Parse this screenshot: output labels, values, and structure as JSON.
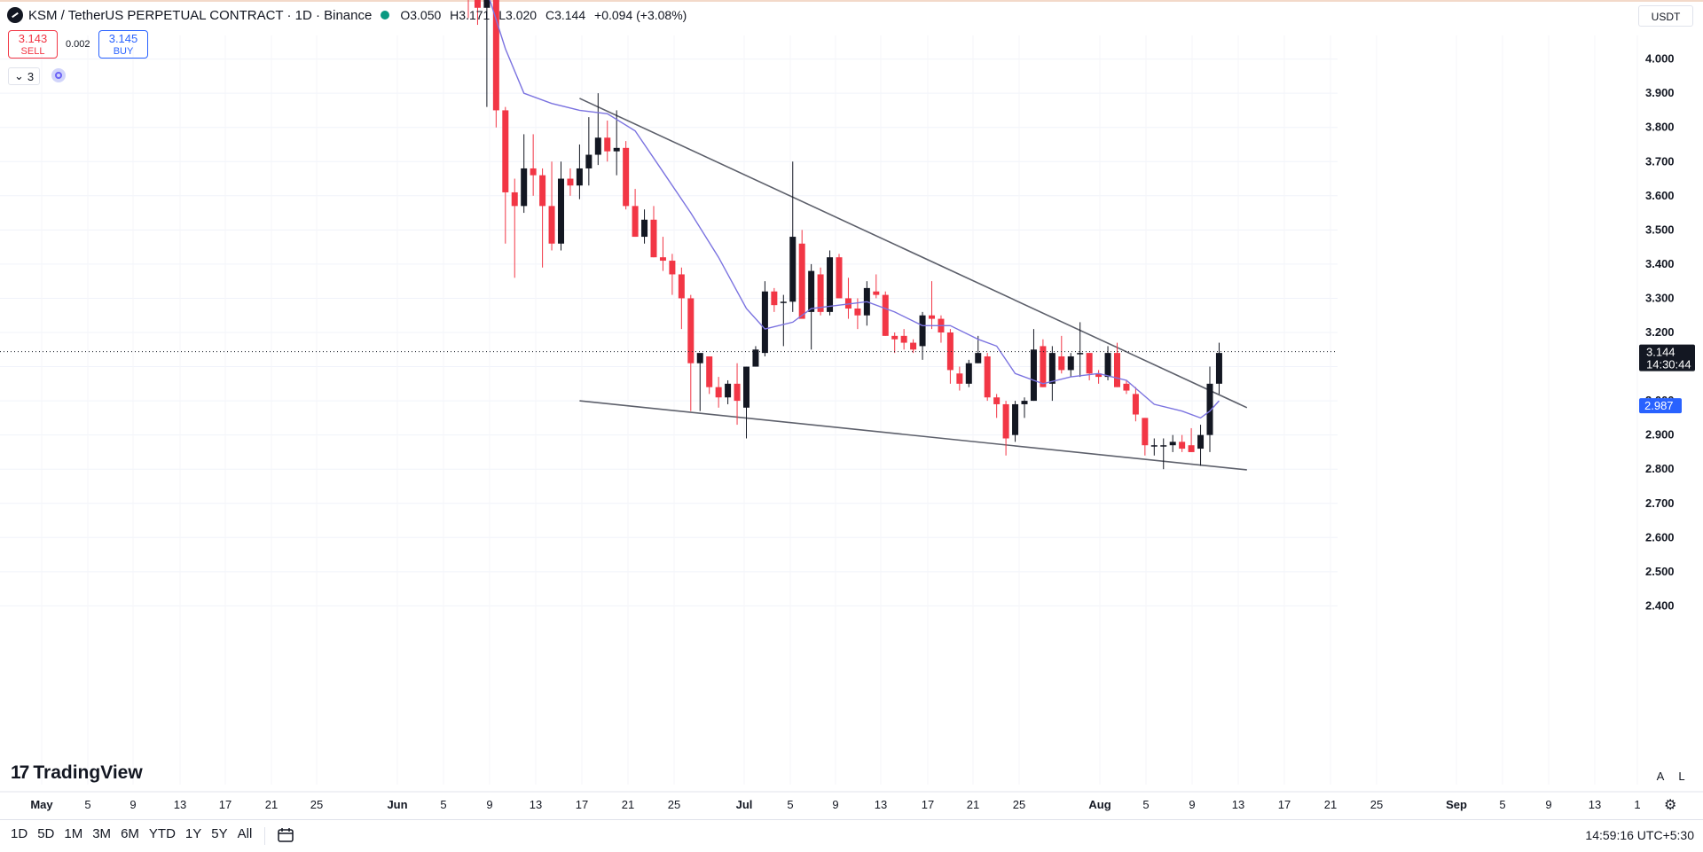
{
  "header": {
    "symbol_title": "KSM / TetherUS PERPETUAL CONTRACT · 1D · Binance",
    "ohlc": [
      {
        "k": "O",
        "v": "3.050"
      },
      {
        "k": "H",
        "v": "3.171"
      },
      {
        "k": "L",
        "v": "3.020"
      },
      {
        "k": "C",
        "v": "3.144"
      }
    ],
    "change": "+0.094 (+3.08%)"
  },
  "trade": {
    "sell_price": "3.143",
    "sell_label": "SELL",
    "buy_price": "3.145",
    "buy_label": "BUY",
    "spread": "0.002"
  },
  "indicators": {
    "count": "3"
  },
  "currency": "USDT",
  "brand": "TradingView",
  "axis_buttons": {
    "auto": "A",
    "log": "L"
  },
  "range_buttons": [
    "1D",
    "5D",
    "1M",
    "3M",
    "6M",
    "YTD",
    "1Y",
    "5Y",
    "All"
  ],
  "clock": "14:59:16 UTC+5:30",
  "colors": {
    "up": "#131722",
    "down": "#f23645",
    "ma": "#7b73e0",
    "trend": "#5d606b",
    "price_label_bg": "#131722",
    "ma_label_bg": "#2962ff"
  },
  "chart_data": {
    "type": "candlestick",
    "y_axis": {
      "ticks": [
        2.4,
        2.5,
        2.6,
        2.7,
        2.8,
        2.9,
        3.0,
        3.1,
        3.2,
        3.3,
        3.4,
        3.5,
        3.6,
        3.7,
        3.8,
        3.9,
        4.0
      ],
      "tick_labels": [
        "2.400",
        "2.500",
        "2.600",
        "2.700",
        "2.800",
        "2.900",
        "3.000",
        "3.100",
        "3.200",
        "3.300",
        "3.400",
        "3.500",
        "3.600",
        "3.700",
        "3.800",
        "3.900",
        "4.000"
      ],
      "ylim": [
        2.32,
        4.17
      ]
    },
    "x_axis": {
      "labels": [
        "May",
        "5",
        "9",
        "13",
        "17",
        "21",
        "25",
        "Jun",
        "5",
        "9",
        "13",
        "17",
        "21",
        "25",
        "Jul",
        "5",
        "9",
        "13",
        "17",
        "21",
        "25",
        "Aug",
        "5",
        "9",
        "13",
        "17",
        "21",
        "25",
        "Sep",
        "5",
        "9",
        "13",
        "1"
      ]
    },
    "current_price": {
      "value": 3.144,
      "label": "3.144",
      "countdown": "14:30:44"
    },
    "ma_value": {
      "value": 2.987,
      "label": "2.987"
    },
    "candles": [
      [
        "2024-06-01",
        4.3,
        4.35,
        4.12,
        4.25
      ],
      [
        "2024-06-02",
        4.25,
        4.3,
        4.1,
        4.15
      ],
      [
        "2024-06-03",
        4.15,
        4.22,
        3.86,
        4.2
      ],
      [
        "2024-06-04",
        4.2,
        4.2,
        3.8,
        3.85
      ],
      [
        "2024-06-05",
        3.85,
        3.86,
        3.46,
        3.61
      ],
      [
        "2024-06-06",
        3.61,
        3.65,
        3.36,
        3.57
      ],
      [
        "2024-06-07",
        3.57,
        3.78,
        3.55,
        3.68
      ],
      [
        "2024-06-08",
        3.68,
        3.78,
        3.6,
        3.66
      ],
      [
        "2024-06-09",
        3.66,
        3.68,
        3.39,
        3.57
      ],
      [
        "2024-06-10",
        3.57,
        3.7,
        3.44,
        3.46
      ],
      [
        "2024-06-11",
        3.46,
        3.7,
        3.44,
        3.65
      ],
      [
        "2024-06-12",
        3.65,
        3.68,
        3.6,
        3.63
      ],
      [
        "2024-06-13",
        3.63,
        3.75,
        3.59,
        3.68
      ],
      [
        "2024-06-14",
        3.68,
        3.83,
        3.63,
        3.72
      ],
      [
        "2024-06-15",
        3.72,
        3.9,
        3.69,
        3.77
      ],
      [
        "2024-06-16",
        3.77,
        3.82,
        3.7,
        3.73
      ],
      [
        "2024-06-17",
        3.73,
        3.85,
        3.66,
        3.74
      ],
      [
        "2024-06-18",
        3.74,
        3.76,
        3.56,
        3.57
      ],
      [
        "2024-06-19",
        3.57,
        3.62,
        3.48,
        3.48
      ],
      [
        "2024-06-20",
        3.48,
        3.56,
        3.46,
        3.53
      ],
      [
        "2024-06-21",
        3.53,
        3.57,
        3.42,
        3.42
      ],
      [
        "2024-06-22",
        3.42,
        3.48,
        3.38,
        3.41
      ],
      [
        "2024-06-23",
        3.41,
        3.43,
        3.31,
        3.37
      ],
      [
        "2024-06-24",
        3.37,
        3.39,
        3.21,
        3.3
      ],
      [
        "2024-06-25",
        3.3,
        3.31,
        2.97,
        3.11
      ],
      [
        "2024-06-26",
        3.11,
        3.13,
        2.97,
        3.14
      ],
      [
        "2024-06-27",
        3.13,
        3.13,
        3.02,
        3.04
      ],
      [
        "2024-06-28",
        3.04,
        3.07,
        2.98,
        3.01
      ],
      [
        "2024-06-29",
        3.01,
        3.06,
        2.99,
        3.05
      ],
      [
        "2024-06-30",
        3.05,
        3.11,
        2.93,
        3.0
      ],
      [
        "2024-07-01",
        2.98,
        3.1,
        2.89,
        3.1
      ],
      [
        "2024-07-02",
        3.1,
        3.16,
        3.1,
        3.15
      ],
      [
        "2024-07-03",
        3.14,
        3.35,
        3.13,
        3.32
      ],
      [
        "2024-07-04",
        3.32,
        3.33,
        3.26,
        3.28
      ],
      [
        "2024-07-05",
        3.29,
        3.31,
        3.16,
        3.29
      ],
      [
        "2024-07-06",
        3.29,
        3.7,
        3.26,
        3.48
      ],
      [
        "2024-07-07",
        3.46,
        3.5,
        3.25,
        3.24
      ],
      [
        "2024-07-08",
        3.26,
        3.4,
        3.15,
        3.38
      ],
      [
        "2024-07-09",
        3.37,
        3.39,
        3.25,
        3.26
      ],
      [
        "2024-07-10",
        3.26,
        3.44,
        3.25,
        3.42
      ],
      [
        "2024-07-11",
        3.42,
        3.43,
        3.3,
        3.3
      ],
      [
        "2024-07-12",
        3.3,
        3.36,
        3.24,
        3.27
      ],
      [
        "2024-07-13",
        3.27,
        3.3,
        3.21,
        3.25
      ],
      [
        "2024-07-14",
        3.25,
        3.35,
        3.22,
        3.33
      ],
      [
        "2024-07-15",
        3.32,
        3.37,
        3.3,
        3.31
      ],
      [
        "2024-07-16",
        3.31,
        3.32,
        3.19,
        3.19
      ],
      [
        "2024-07-17",
        3.19,
        3.2,
        3.14,
        3.18
      ],
      [
        "2024-07-18",
        3.19,
        3.21,
        3.15,
        3.17
      ],
      [
        "2024-07-19",
        3.17,
        3.18,
        3.14,
        3.15
      ],
      [
        "2024-07-20",
        3.16,
        3.26,
        3.12,
        3.25
      ],
      [
        "2024-07-21",
        3.25,
        3.35,
        3.21,
        3.24
      ],
      [
        "2024-07-22",
        3.24,
        3.25,
        3.17,
        3.2
      ],
      [
        "2024-07-23",
        3.2,
        3.21,
        3.05,
        3.09
      ],
      [
        "2024-07-24",
        3.08,
        3.1,
        3.03,
        3.05
      ],
      [
        "2024-07-25",
        3.05,
        3.12,
        3.04,
        3.11
      ],
      [
        "2024-07-26",
        3.11,
        3.19,
        3.11,
        3.14
      ],
      [
        "2024-07-27",
        3.13,
        3.14,
        3.0,
        3.01
      ],
      [
        "2024-07-28",
        3.01,
        3.02,
        2.95,
        2.99
      ],
      [
        "2024-07-29",
        2.99,
        3.0,
        2.84,
        2.89
      ],
      [
        "2024-07-30",
        2.9,
        3.0,
        2.88,
        2.99
      ],
      [
        "2024-07-31",
        2.99,
        3.01,
        2.95,
        3.0
      ],
      [
        "2024-08-01",
        3.0,
        3.21,
        3.0,
        3.15
      ],
      [
        "2024-08-02",
        3.16,
        3.18,
        3.04,
        3.04
      ],
      [
        "2024-08-03",
        3.05,
        3.16,
        3.0,
        3.14
      ],
      [
        "2024-08-04",
        3.13,
        3.19,
        3.08,
        3.09
      ],
      [
        "2024-08-05",
        3.09,
        3.14,
        3.07,
        3.13
      ],
      [
        "2024-08-06",
        3.14,
        3.23,
        3.07,
        3.14
      ],
      [
        "2024-08-07",
        3.14,
        3.14,
        3.06,
        3.08
      ],
      [
        "2024-08-08",
        3.08,
        3.09,
        3.05,
        3.07
      ],
      [
        "2024-08-09",
        3.07,
        3.16,
        3.06,
        3.14
      ],
      [
        "2024-08-10",
        3.14,
        3.17,
        3.04,
        3.04
      ],
      [
        "2024-08-11",
        3.05,
        3.06,
        3.02,
        3.03
      ],
      [
        "2024-08-12",
        3.02,
        3.04,
        2.94,
        2.96
      ],
      [
        "2024-08-13",
        2.95,
        2.95,
        2.84,
        2.87
      ],
      [
        "2024-08-14",
        2.87,
        2.89,
        2.84,
        2.87
      ],
      [
        "2024-08-15",
        2.87,
        2.89,
        2.8,
        2.87
      ],
      [
        "2024-08-16",
        2.87,
        2.9,
        2.85,
        2.88
      ],
      [
        "2024-08-17",
        2.88,
        2.9,
        2.85,
        2.86
      ],
      [
        "2024-08-18",
        2.87,
        2.92,
        2.85,
        2.85
      ],
      [
        "2024-08-19",
        2.86,
        2.93,
        2.81,
        2.9
      ],
      [
        "2024-08-20",
        2.9,
        3.1,
        2.85,
        3.05
      ],
      [
        "2024-08-21",
        3.05,
        3.17,
        3.02,
        3.14
      ]
    ],
    "moving_average": [
      [
        "2024-06-03",
        4.2
      ],
      [
        "2024-06-05",
        4.03
      ],
      [
        "2024-06-07",
        3.9
      ],
      [
        "2024-06-10",
        3.87
      ],
      [
        "2024-06-13",
        3.85
      ],
      [
        "2024-06-16",
        3.84
      ],
      [
        "2024-06-19",
        3.79
      ],
      [
        "2024-06-22",
        3.67
      ],
      [
        "2024-06-25",
        3.55
      ],
      [
        "2024-06-28",
        3.42
      ],
      [
        "2024-07-01",
        3.27
      ],
      [
        "2024-07-03",
        3.21
      ],
      [
        "2024-07-06",
        3.23
      ],
      [
        "2024-07-08",
        3.27
      ],
      [
        "2024-07-11",
        3.28
      ],
      [
        "2024-07-14",
        3.29
      ],
      [
        "2024-07-17",
        3.26
      ],
      [
        "2024-07-20",
        3.22
      ],
      [
        "2024-07-23",
        3.22
      ],
      [
        "2024-07-26",
        3.18
      ],
      [
        "2024-07-28",
        3.16
      ],
      [
        "2024-07-30",
        3.08
      ],
      [
        "2024-08-02",
        3.05
      ],
      [
        "2024-08-05",
        3.07
      ],
      [
        "2024-08-08",
        3.08
      ],
      [
        "2024-08-11",
        3.06
      ],
      [
        "2024-08-14",
        2.99
      ],
      [
        "2024-08-17",
        2.97
      ],
      [
        "2024-08-19",
        2.95
      ],
      [
        "2024-08-20",
        2.97
      ],
      [
        "2024-08-21",
        3.0
      ]
    ],
    "trendlines": [
      {
        "from": [
          "2024-06-13",
          3.885
        ],
        "to": [
          "2024-08-24",
          2.98
        ]
      },
      {
        "from": [
          "2024-06-13",
          3.0
        ],
        "to": [
          "2024-08-24",
          2.798
        ]
      }
    ]
  }
}
